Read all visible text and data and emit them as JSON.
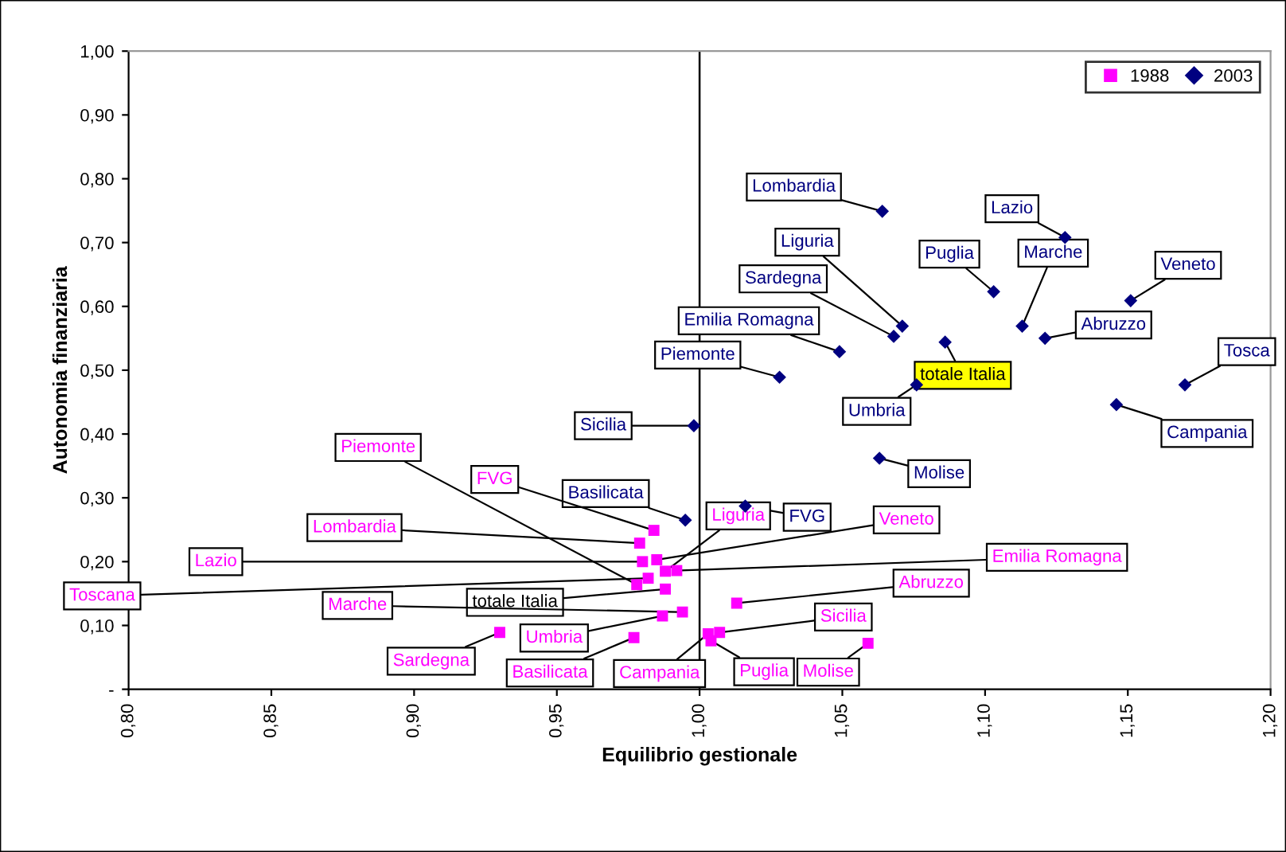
{
  "chart_data": {
    "type": "scatter",
    "xlabel": "Equilibrio gestionale",
    "ylabel": "Autonomia finanziaria",
    "xlim": [
      0.8,
      1.2
    ],
    "xticks": [
      {
        "value": 0.8,
        "label": "0,80"
      },
      {
        "value": 0.85,
        "label": "0,85"
      },
      {
        "value": 0.9,
        "label": "0,90"
      },
      {
        "value": 0.95,
        "label": "0,95"
      },
      {
        "value": 1.0,
        "label": "1,00"
      },
      {
        "value": 1.05,
        "label": "1,05"
      },
      {
        "value": 1.1,
        "label": "1,10"
      },
      {
        "value": 1.15,
        "label": "1,15"
      },
      {
        "value": 1.2,
        "label": "1,20"
      }
    ],
    "ylim": [
      0,
      1.0
    ],
    "yticks": [
      {
        "value": 0,
        "label": "-"
      },
      {
        "value": 0.1,
        "label": "0,10"
      },
      {
        "value": 0.2,
        "label": "0,20"
      },
      {
        "value": 0.3,
        "label": "0,30"
      },
      {
        "value": 0.4,
        "label": "0,40"
      },
      {
        "value": 0.5,
        "label": "0,50"
      },
      {
        "value": 0.6,
        "label": "0,60"
      },
      {
        "value": 0.7,
        "label": "0,70"
      },
      {
        "value": 0.8,
        "label": "0,80"
      },
      {
        "value": 0.9,
        "label": "0,90"
      },
      {
        "value": 1.0,
        "label": "1,00"
      }
    ],
    "grid": false,
    "legend": "top right",
    "ref_lines": [
      {
        "axis": "x",
        "value": 1.0,
        "color": "#000000"
      }
    ],
    "series": [
      {
        "name": "1988",
        "color": "#ff00ff",
        "marker": "square",
        "x": [
          0.984,
          0.979,
          0.98,
          0.985,
          0.988,
          0.992,
          0.982,
          0.978,
          0.988,
          0.994,
          0.987,
          0.93,
          0.977,
          1.003,
          1.004,
          1.007,
          1.013,
          1.059
        ],
        "values": [
          0.249,
          0.229,
          0.2,
          0.203,
          0.185,
          0.186,
          0.174,
          0.164,
          0.157,
          0.121,
          0.115,
          0.089,
          0.081,
          0.087,
          0.076,
          0.089,
          0.135,
          0.072
        ]
      },
      {
        "name": "2003",
        "color": "#000080",
        "marker": "diamond",
        "x": [
          1.064,
          1.128,
          1.103,
          1.113,
          1.151,
          1.121,
          1.071,
          1.068,
          1.049,
          1.028,
          1.086,
          1.076,
          1.17,
          1.146,
          0.998,
          1.063,
          0.995,
          1.016
        ],
        "values": [
          0.749,
          0.708,
          0.623,
          0.569,
          0.609,
          0.55,
          0.569,
          0.553,
          0.529,
          0.489,
          0.544,
          0.477,
          0.477,
          0.446,
          0.413,
          0.362,
          0.265,
          0.287
        ]
      }
    ],
    "annotations": [
      {
        "text": "Lombardia",
        "x": 1.064,
        "y": 0.749
      },
      {
        "text": "Lazio",
        "x": 1.128,
        "y": 0.708
      },
      {
        "text": "Puglia",
        "x": 1.103,
        "y": 0.623
      },
      {
        "text": "Marche",
        "x": 1.113,
        "y": 0.569
      },
      {
        "text": "Veneto",
        "x": 1.151,
        "y": 0.609
      },
      {
        "text": "Abruzzo",
        "x": 1.121,
        "y": 0.55
      },
      {
        "text": "Liguria",
        "x": 1.071,
        "y": 0.569
      },
      {
        "text": "Sardegna",
        "x": 1.068,
        "y": 0.553
      },
      {
        "text": "Emilia Romagna",
        "x": 1.049,
        "y": 0.529
      },
      {
        "text": "Piemonte",
        "x": 1.028,
        "y": 0.489
      },
      {
        "text": "totale Italia",
        "x": 1.086,
        "y": 0.544
      },
      {
        "text": "Umbria",
        "x": 1.076,
        "y": 0.477
      },
      {
        "text": "Tosca",
        "x": 1.17,
        "y": 0.477
      },
      {
        "text": "Campania",
        "x": 1.146,
        "y": 0.446
      },
      {
        "text": "Sicilia",
        "x": 0.998,
        "y": 0.413
      },
      {
        "text": "Molise",
        "x": 1.063,
        "y": 0.362
      },
      {
        "text": "Basilicata",
        "x": 0.995,
        "y": 0.265
      },
      {
        "text": "FVG",
        "x": 1.016,
        "y": 0.287
      },
      {
        "text": "FVG",
        "x": 0.984,
        "y": 0.249
      },
      {
        "text": "Lombardia",
        "x": 0.979,
        "y": 0.229
      },
      {
        "text": "Lazio",
        "x": 0.98,
        "y": 0.2
      },
      {
        "text": "Veneto",
        "x": 0.985,
        "y": 0.203
      },
      {
        "text": "Liguria",
        "x": 0.988,
        "y": 0.185
      },
      {
        "text": "Emilia Romagna",
        "x": 0.992,
        "y": 0.186
      },
      {
        "text": "Toscana",
        "x": 0.982,
        "y": 0.174
      },
      {
        "text": "Piemonte",
        "x": 0.978,
        "y": 0.164
      },
      {
        "text": "totale Italia",
        "x": 0.988,
        "y": 0.157
      },
      {
        "text": "Marche",
        "x": 0.994,
        "y": 0.121
      },
      {
        "text": "Umbria",
        "x": 0.987,
        "y": 0.115
      },
      {
        "text": "Sardegna",
        "x": 0.93,
        "y": 0.089
      },
      {
        "text": "Basilicata",
        "x": 0.977,
        "y": 0.081
      },
      {
        "text": "Campania",
        "x": 1.003,
        "y": 0.087
      },
      {
        "text": "Puglia",
        "x": 1.004,
        "y": 0.076
      },
      {
        "text": "Sicilia",
        "x": 1.007,
        "y": 0.089
      },
      {
        "text": "Abruzzo",
        "x": 1.013,
        "y": 0.135
      },
      {
        "text": "Molise",
        "x": 1.059,
        "y": 0.072
      }
    ]
  }
}
